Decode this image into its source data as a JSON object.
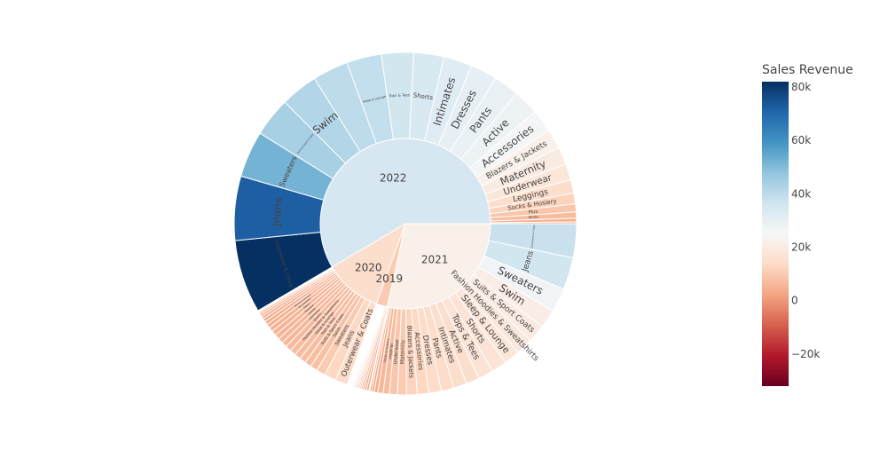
{
  "chart_data": {
    "type": "sunburst",
    "levels": [
      "year",
      "category"
    ],
    "colorbar": {
      "title": "Sales Revenue",
      "range": [
        -32000,
        82000
      ],
      "ticks": [
        80000,
        60000,
        40000,
        20000,
        0,
        -20000
      ],
      "tick_labels": [
        "80k",
        "60k",
        "40k",
        "20k",
        "0",
        "−20k"
      ],
      "colorscale": "RdBu"
    },
    "years": [
      {
        "label": "2021",
        "color_value": 22000,
        "categories": [
          {
            "label": "Outerwear & Coats",
            "value": 38000
          },
          {
            "label": "Jeans",
            "value": 36000
          },
          {
            "label": "Sweaters",
            "value": 27000
          },
          {
            "label": "Swim",
            "value": 21000
          },
          {
            "label": "Suits & Sport Coats",
            "value": 20000
          },
          {
            "label": "Fashion Hoodies & Sweatshirts",
            "value": 19000
          },
          {
            "label": "Sleep & Lounge",
            "value": 18000
          },
          {
            "label": "Shorts",
            "value": 17000
          },
          {
            "label": "Tops & Tees",
            "value": 17000
          },
          {
            "label": "Active",
            "value": 15000
          },
          {
            "label": "Intimates",
            "value": 15000
          },
          {
            "label": "Pants",
            "value": 14000
          },
          {
            "label": "Dresses",
            "value": 14000
          },
          {
            "label": "Accessories",
            "value": 13000
          },
          {
            "label": "Blazers & Jackets",
            "value": 12000
          },
          {
            "label": "Maternity",
            "value": 10000
          },
          {
            "label": "Underwear",
            "value": 9000
          },
          {
            "label": "Leggings",
            "value": 7000
          },
          {
            "label": "Socks & Hosiery",
            "value": 6000
          },
          {
            "label": "Plus",
            "value": 4000
          },
          {
            "label": "Skirts",
            "value": 3000
          },
          {
            "label": "Jumpsuits & Rompers",
            "value": 2000
          },
          {
            "label": "Clothing Sets",
            "value": 1000
          }
        ]
      },
      {
        "label": "2019",
        "color_value": 10000,
        "categories": [
          {
            "label": "Outerwear & Coats",
            "value": 2600
          },
          {
            "label": "Jeans",
            "value": 2400
          },
          {
            "label": "Sweaters",
            "value": 2000
          },
          {
            "label": "Swim",
            "value": 1700
          },
          {
            "label": "Suits & Sport Coats",
            "value": 1600
          },
          {
            "label": "Fashion Hoodies & Sweatshirts",
            "value": 1500
          },
          {
            "label": "Sleep & Lounge",
            "value": 1400
          },
          {
            "label": "Shorts",
            "value": 1300
          },
          {
            "label": "Tops & Tees",
            "value": 1300
          },
          {
            "label": "Intimates",
            "value": 1200
          },
          {
            "label": "Active",
            "value": 1100
          },
          {
            "label": "Pants",
            "value": 1100
          },
          {
            "label": "Dresses",
            "value": 1000
          },
          {
            "label": "Accessories",
            "value": 1000
          },
          {
            "label": "Blazers & Jackets",
            "value": 900
          },
          {
            "label": "Maternity",
            "value": 800
          },
          {
            "label": "Underwear",
            "value": 700
          },
          {
            "label": "Leggings",
            "value": 500
          },
          {
            "label": "Socks & Hosiery",
            "value": 400
          },
          {
            "label": "Plus",
            "value": 300
          },
          {
            "label": "Skirts",
            "value": 200
          }
        ]
      },
      {
        "label": "2020",
        "color_value": 15000,
        "categories": [
          {
            "label": "Outerwear & Coats",
            "value": 14000
          },
          {
            "label": "Jeans",
            "value": 13000
          },
          {
            "label": "Sweaters",
            "value": 10000
          },
          {
            "label": "Swim",
            "value": 8000
          },
          {
            "label": "Suits & Sport Coats",
            "value": 7500
          },
          {
            "label": "Tops & Tees",
            "value": 7200
          },
          {
            "label": "Sleep & Lounge",
            "value": 7000
          },
          {
            "label": "Fashion Hoodies & Sweatshirts",
            "value": 6800
          },
          {
            "label": "Shorts",
            "value": 6500
          },
          {
            "label": "Intimates",
            "value": 6000
          },
          {
            "label": "Active",
            "value": 5800
          },
          {
            "label": "Dresses",
            "value": 5600
          },
          {
            "label": "Pants",
            "value": 5400
          },
          {
            "label": "Accessories",
            "value": 5000
          },
          {
            "label": "Blazers & Jackets",
            "value": 4500
          },
          {
            "label": "Maternity",
            "value": 4000
          },
          {
            "label": "Underwear",
            "value": 3500
          },
          {
            "label": "Leggings",
            "value": 3000
          },
          {
            "label": "Socks & Hosiery",
            "value": 2500
          },
          {
            "label": "Plus",
            "value": 2000
          },
          {
            "label": "Skirts",
            "value": 1500
          },
          {
            "label": "Jumpsuits & Rompers",
            "value": 1000
          },
          {
            "label": "Clothing Sets",
            "value": 700
          }
        ]
      },
      {
        "label": "2022",
        "color_value": 35000,
        "categories": [
          {
            "label": "Outerwear & Coats",
            "value": 82000
          },
          {
            "label": "Jeans",
            "value": 72000
          },
          {
            "label": "Sweaters",
            "value": 52000
          },
          {
            "label": "Suits & Sport Coats",
            "value": 44000
          },
          {
            "label": "Swim",
            "value": 42000
          },
          {
            "label": "Fashion Hoodies & Sweatshirts",
            "value": 40000
          },
          {
            "label": "Sleep & Lounge",
            "value": 39000
          },
          {
            "label": "Tops & Tees",
            "value": 36000
          },
          {
            "label": "Shorts",
            "value": 34000
          },
          {
            "label": "Intimates",
            "value": 32000
          },
          {
            "label": "Dresses",
            "value": 30000
          },
          {
            "label": "Pants",
            "value": 29000
          },
          {
            "label": "Active",
            "value": 28000
          },
          {
            "label": "Accessories",
            "value": 26000
          },
          {
            "label": "Blazers & Jackets",
            "value": 22000
          },
          {
            "label": "Maternity",
            "value": 20000
          },
          {
            "label": "Underwear",
            "value": 18000
          },
          {
            "label": "Leggings",
            "value": 15000
          },
          {
            "label": "Socks & Hosiery",
            "value": 12000
          },
          {
            "label": "Plus",
            "value": 9000
          },
          {
            "label": "Skirts",
            "value": 7000
          },
          {
            "label": "Jumpsuits & Rompers",
            "value": 4000
          },
          {
            "label": "Clothing Sets",
            "value": 2000
          }
        ]
      }
    ]
  }
}
